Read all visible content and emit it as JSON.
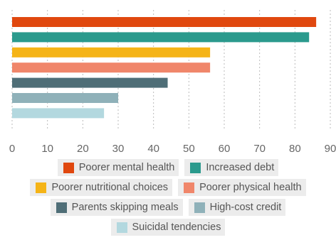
{
  "chart_data": {
    "type": "bar",
    "orientation": "horizontal",
    "series": [
      {
        "name": "Poorer mental health",
        "color": "#e0480f",
        "values": [
          86
        ]
      },
      {
        "name": "Increased debt",
        "color": "#2b9a8d",
        "values": [
          84
        ]
      },
      {
        "name": "Poorer nutritional choices",
        "color": "#f5b417",
        "values": [
          56
        ]
      },
      {
        "name": "Poorer physical health",
        "color": "#f0866a",
        "values": [
          56
        ]
      },
      {
        "name": "Parents skipping meals",
        "color": "#4f6e77",
        "values": [
          44
        ]
      },
      {
        "name": "High-cost credit",
        "color": "#8fb1b9",
        "values": [
          30
        ]
      },
      {
        "name": "Suicidal tendencies",
        "color": "#b3d8df",
        "values": [
          26
        ]
      }
    ],
    "xlim": [
      0,
      90
    ],
    "xticks": [
      0,
      10,
      20,
      30,
      40,
      50,
      60,
      70,
      80,
      90
    ],
    "grid": true,
    "legend": "bottom"
  }
}
